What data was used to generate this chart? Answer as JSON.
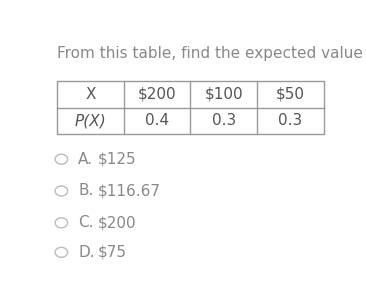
{
  "title": "From this table, find the expected value of X.",
  "table_headers": [
    "X",
    "$200",
    "$100",
    "$50"
  ],
  "table_row": [
    "P(X)",
    "0.4",
    "0.3",
    "0.3"
  ],
  "options": [
    {
      "label": "A.",
      "text": "$125"
    },
    {
      "label": "B.",
      "text": "$116.67"
    },
    {
      "label": "C.",
      "text": "$200"
    },
    {
      "label": "D.",
      "text": "$75"
    }
  ],
  "bg_color": "#ffffff",
  "text_color": "#888888",
  "table_text_color": "#555555",
  "title_fontsize": 11,
  "option_fontsize": 11,
  "table_fontsize": 11
}
